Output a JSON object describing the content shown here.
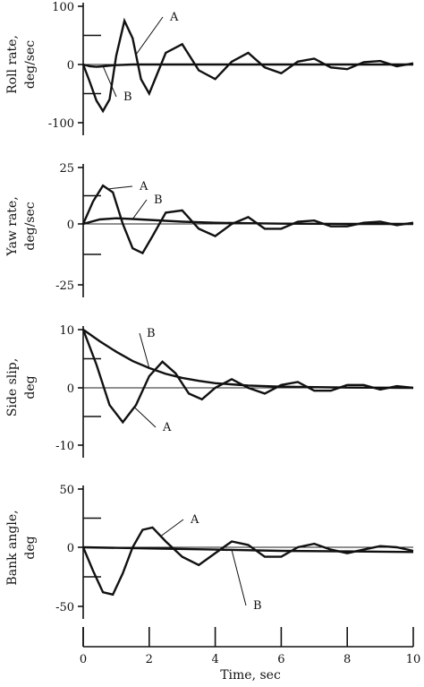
{
  "chart_data": {
    "type": "line",
    "xlabel": "Time, sec",
    "xlim": [
      0,
      10
    ],
    "xticks": [
      "0",
      "2",
      "4",
      "6",
      "8",
      "10"
    ],
    "panels": [
      {
        "ylabel": [
          "Roll rate,",
          "deg/sec"
        ],
        "ylim": [
          -100,
          100
        ],
        "yticks": [
          "100",
          "0",
          "-100"
        ],
        "series": [
          {
            "name": "A",
            "x": [
              0,
              0.2,
              0.4,
              0.6,
              0.8,
              1.0,
              1.25,
              1.5,
              1.75,
              2.0,
              2.5,
              3.0,
              3.5,
              4.0,
              4.5,
              5.0,
              5.5,
              6.0,
              6.5,
              7.0,
              7.5,
              8.0,
              8.5,
              9.0,
              9.5,
              10.0
            ],
            "y": [
              0,
              -30,
              -62,
              -80,
              -60,
              15,
              75,
              45,
              -25,
              -50,
              20,
              35,
              -10,
              -25,
              5,
              20,
              -5,
              -15,
              5,
              10,
              -5,
              -8,
              4,
              6,
              -3,
              2
            ]
          },
          {
            "name": "B",
            "x": [
              0,
              0.2,
              0.4,
              0.6,
              0.8,
              1.0,
              1.5,
              2.0,
              3.0,
              5.0,
              10.0
            ],
            "y": [
              0,
              -3,
              -4,
              -3,
              -2,
              -1,
              0,
              0,
              0,
              0,
              0
            ]
          }
        ]
      },
      {
        "ylabel": [
          "Yaw rate,",
          "deg/sec"
        ],
        "ylim": [
          -25,
          25
        ],
        "yticks": [
          "25",
          "0",
          "-25"
        ],
        "series": [
          {
            "name": "A",
            "x": [
              0,
              0.3,
              0.6,
              0.9,
              1.2,
              1.5,
              1.8,
              2.1,
              2.5,
              3.0,
              3.5,
              4.0,
              4.5,
              5.0,
              5.5,
              6.0,
              6.5,
              7.0,
              7.5,
              8.0,
              8.5,
              9.0,
              9.5,
              10.0
            ],
            "y": [
              0,
              10,
              17,
              14,
              0,
              -10,
              -12,
              -5,
              5,
              6,
              -2,
              -5,
              0,
              3,
              -2,
              -2,
              1,
              1.5,
              -1,
              -1,
              0.5,
              1,
              -0.5,
              0.5
            ]
          },
          {
            "name": "B",
            "x": [
              0,
              0.5,
              1.0,
              1.5,
              2.0,
              3.0,
              4.0,
              5.0,
              6.0,
              8.0,
              10.0
            ],
            "y": [
              0,
              2,
              2.5,
              2.2,
              1.8,
              1.0,
              0.5,
              0.3,
              0.1,
              0,
              0
            ]
          }
        ]
      },
      {
        "ylabel": [
          "Side slip,",
          "deg"
        ],
        "ylim": [
          -10,
          10
        ],
        "yticks": [
          "10",
          "0",
          "-10"
        ],
        "series": [
          {
            "name": "A",
            "x": [
              0,
              0.4,
              0.8,
              1.2,
              1.6,
              2.0,
              2.4,
              2.8,
              3.2,
              3.6,
              4.0,
              4.5,
              5.0,
              5.5,
              6.0,
              6.5,
              7.0,
              7.5,
              8.0,
              8.5,
              9.0,
              9.5,
              10.0
            ],
            "y": [
              10,
              4,
              -3,
              -6,
              -3,
              2,
              4.5,
              2.5,
              -1,
              -2,
              0,
              1.5,
              0,
              -1,
              0.5,
              1,
              -0.5,
              -0.5,
              0.5,
              0.5,
              -0.3,
              0.3,
              0
            ]
          },
          {
            "name": "B",
            "x": [
              0,
              0.5,
              1.0,
              1.5,
              2.0,
              2.5,
              3.0,
              3.5,
              4.0,
              5.0,
              6.0,
              8.0,
              10.0
            ],
            "y": [
              10,
              8,
              6.2,
              4.6,
              3.4,
              2.4,
              1.7,
              1.2,
              0.8,
              0.4,
              0.2,
              0.05,
              0
            ]
          }
        ]
      },
      {
        "ylabel": [
          "Bank angle,",
          "deg"
        ],
        "ylim": [
          -50,
          50
        ],
        "yticks": [
          "50",
          "0",
          "-50"
        ],
        "series": [
          {
            "name": "A",
            "x": [
              0,
              0.3,
              0.6,
              0.9,
              1.2,
              1.5,
              1.8,
              2.1,
              2.5,
              3.0,
              3.5,
              4.0,
              4.5,
              5.0,
              5.5,
              6.0,
              6.5,
              7.0,
              7.5,
              8.0,
              8.5,
              9.0,
              9.5,
              10.0
            ],
            "y": [
              0,
              -20,
              -38,
              -40,
              -22,
              0,
              15,
              17,
              5,
              -8,
              -15,
              -5,
              5,
              2,
              -8,
              -8,
              0,
              3,
              -2,
              -5,
              -2,
              1,
              0,
              -3
            ]
          },
          {
            "name": "B",
            "x": [
              0,
              2.0,
              4.0,
              6.0,
              8.0,
              10.0
            ],
            "y": [
              0,
              -1,
              -2,
              -3,
              -3.5,
              -4
            ]
          }
        ]
      }
    ]
  }
}
